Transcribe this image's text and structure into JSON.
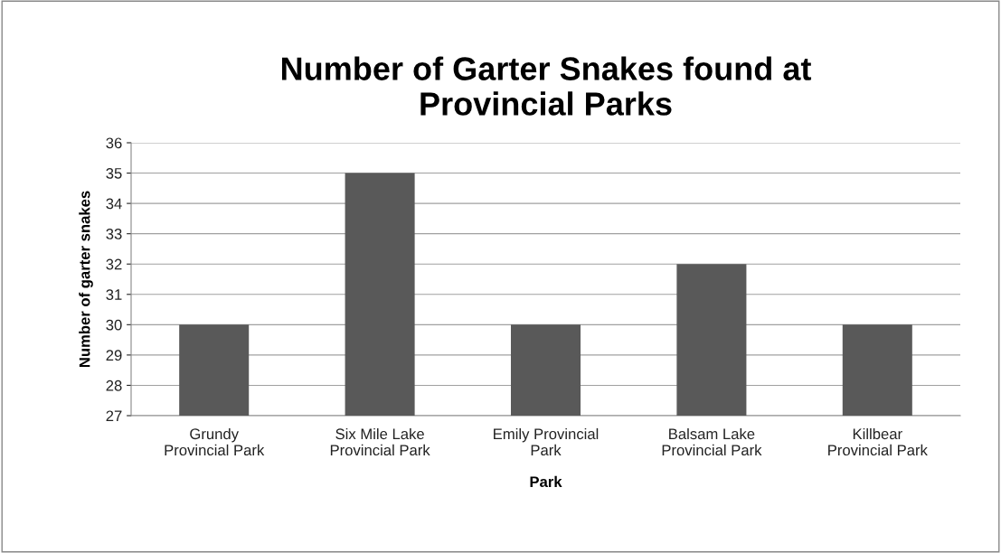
{
  "chart_data": {
    "type": "bar",
    "title": "Number of Garter Snakes found at\nProvincial Parks",
    "xlabel": "Park",
    "ylabel": "Number of garter snakes",
    "categories": [
      "Grundy\nProvincial Park",
      "Six Mile Lake\nProvincial Park",
      "Emily Provincial\nPark",
      "Balsam Lake\nProvincial Park",
      "Killbear\nProvincial Park"
    ],
    "values": [
      30,
      35,
      30,
      32,
      30
    ],
    "color": "#595959",
    "ylim": [
      27,
      36
    ],
    "yticks": [
      27,
      28,
      29,
      30,
      31,
      32,
      33,
      34,
      35,
      36
    ],
    "grid": "y"
  }
}
